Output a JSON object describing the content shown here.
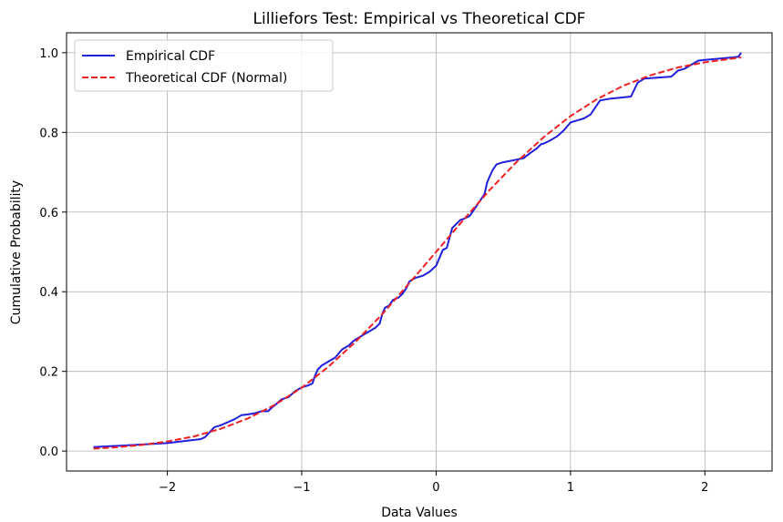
{
  "chart_data": {
    "type": "line",
    "title": "Lilliefors Test: Empirical vs Theoretical CDF",
    "xlabel": "Data Values",
    "ylabel": "Cumulative Probability",
    "xlim": [
      -2.75,
      2.5
    ],
    "ylim": [
      -0.05,
      1.05
    ],
    "x_ticks": [
      -2,
      -1,
      0,
      1,
      2
    ],
    "x_tick_labels": [
      "−2",
      "−1",
      "0",
      "1",
      "2"
    ],
    "y_ticks": [
      0.0,
      0.2,
      0.4,
      0.6,
      0.8,
      1.0
    ],
    "y_tick_labels": [
      "0.0",
      "0.2",
      "0.4",
      "0.6",
      "0.8",
      "1.0"
    ],
    "grid": true,
    "legend_position": "top-left",
    "series": [
      {
        "name": "Empirical CDF",
        "color": "#1f1fdd",
        "style": "solid",
        "x": [
          -2.55,
          -2.0,
          -1.75,
          -1.72,
          -1.65,
          -1.6,
          -1.5,
          -1.45,
          -1.4,
          -1.35,
          -1.3,
          -1.25,
          -1.22,
          -1.2,
          -1.15,
          -1.1,
          -1.05,
          -1.0,
          -0.95,
          -0.92,
          -0.9,
          -0.88,
          -0.85,
          -0.8,
          -0.75,
          -0.7,
          -0.65,
          -0.62,
          -0.6,
          -0.55,
          -0.5,
          -0.45,
          -0.42,
          -0.4,
          -0.38,
          -0.35,
          -0.32,
          -0.28,
          -0.25,
          -0.22,
          -0.2,
          -0.18,
          -0.15,
          -0.1,
          -0.05,
          0.0,
          0.05,
          0.08,
          0.12,
          0.15,
          0.18,
          0.2,
          0.25,
          0.3,
          0.33,
          0.36,
          0.38,
          0.4,
          0.42,
          0.45,
          0.47,
          0.5,
          0.65,
          0.7,
          0.75,
          0.78,
          0.8,
          0.85,
          0.9,
          0.95,
          1.0,
          1.05,
          1.1,
          1.15,
          1.2,
          1.22,
          1.3,
          1.45,
          1.5,
          1.55,
          1.75,
          1.8,
          1.85,
          1.9,
          1.95,
          2.0,
          2.2,
          2.25,
          2.27
        ],
        "y": [
          0.01,
          0.02,
          0.03,
          0.035,
          0.06,
          0.065,
          0.08,
          0.09,
          0.092,
          0.095,
          0.1,
          0.1,
          0.11,
          0.115,
          0.13,
          0.135,
          0.15,
          0.16,
          0.165,
          0.17,
          0.19,
          0.205,
          0.215,
          0.225,
          0.235,
          0.255,
          0.265,
          0.275,
          0.28,
          0.29,
          0.3,
          0.31,
          0.32,
          0.345,
          0.36,
          0.365,
          0.38,
          0.385,
          0.395,
          0.41,
          0.425,
          0.43,
          0.435,
          0.44,
          0.45,
          0.465,
          0.505,
          0.51,
          0.56,
          0.57,
          0.58,
          0.582,
          0.59,
          0.615,
          0.63,
          0.645,
          0.675,
          0.69,
          0.705,
          0.72,
          0.722,
          0.725,
          0.735,
          0.748,
          0.76,
          0.77,
          0.772,
          0.78,
          0.79,
          0.805,
          0.825,
          0.83,
          0.835,
          0.845,
          0.87,
          0.88,
          0.885,
          0.89,
          0.925,
          0.935,
          0.94,
          0.955,
          0.96,
          0.97,
          0.98,
          0.982,
          0.988,
          0.99,
          1.0
        ]
      },
      {
        "name": "Theoretical CDF (Normal)",
        "color": "#ee2222",
        "style": "dashed",
        "x": [
          -2.55,
          -2.4,
          -2.2,
          -2.0,
          -1.8,
          -1.6,
          -1.4,
          -1.2,
          -1.0,
          -0.8,
          -0.6,
          -0.4,
          -0.2,
          0.0,
          0.2,
          0.4,
          0.6,
          0.8,
          1.0,
          1.2,
          1.4,
          1.6,
          1.8,
          2.0,
          2.2,
          2.27
        ],
        "y": [
          0.006,
          0.009,
          0.015,
          0.024,
          0.037,
          0.056,
          0.082,
          0.116,
          0.159,
          0.212,
          0.274,
          0.344,
          0.421,
          0.5,
          0.579,
          0.656,
          0.726,
          0.788,
          0.841,
          0.884,
          0.918,
          0.944,
          0.963,
          0.976,
          0.985,
          0.988
        ]
      }
    ]
  }
}
